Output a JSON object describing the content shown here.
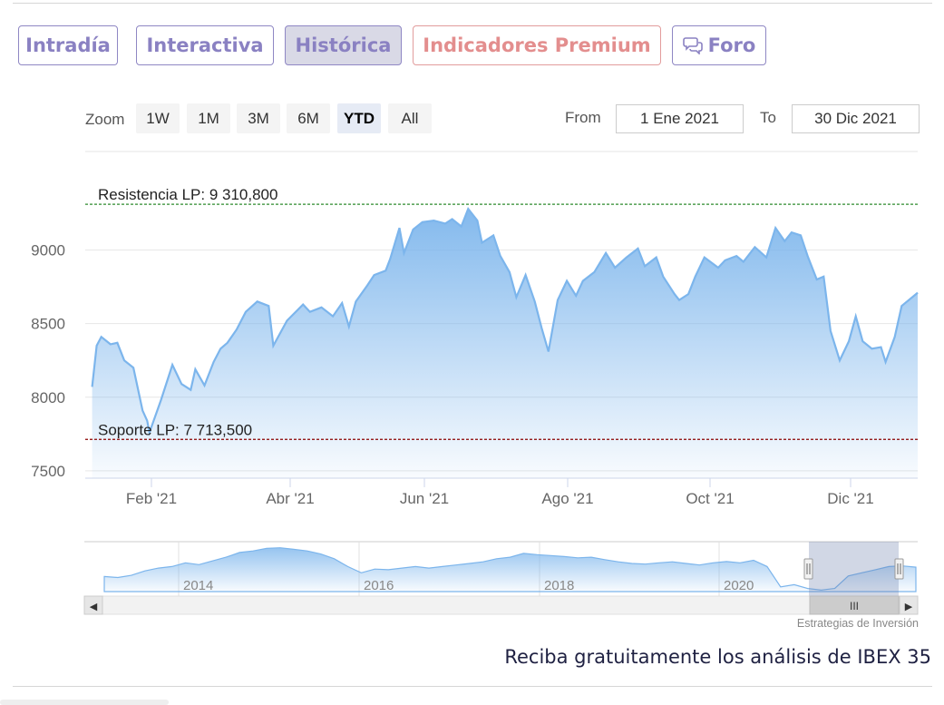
{
  "tabs": [
    {
      "label": "Intradía",
      "state": "normal"
    },
    {
      "label": "Interactiva",
      "state": "normal"
    },
    {
      "label": "Histórica",
      "state": "active"
    },
    {
      "label": "Indicadores Premium",
      "state": "premium"
    },
    {
      "label": "Foro",
      "state": "normal",
      "icon": "speech-bubbles-icon"
    }
  ],
  "range_selector": {
    "zoom_label": "Zoom",
    "buttons": [
      "1W",
      "1M",
      "3M",
      "6M",
      "YTD",
      "All"
    ],
    "selected": "YTD",
    "from_label": "From",
    "from_value": "1 Ene 2021",
    "to_label": "To",
    "to_value": "30 Dic 2021"
  },
  "colors": {
    "tab_border": "#8f87c4",
    "tab_text": "#8a81c2",
    "premium": "#e38e8e",
    "series_line": "#7cb5ec",
    "resistance_line": "#2e8b2e",
    "support_line": "#8b0000"
  },
  "chart_data": {
    "type": "area",
    "title": "",
    "xlabel": "",
    "ylabel": "",
    "ylim": [
      7450,
      9620
    ],
    "x_range": [
      "2021-01-01",
      "2021-12-30"
    ],
    "y_ticks": [
      "9000",
      "8500",
      "8000",
      "7500"
    ],
    "x_ticks": [
      "Feb '21",
      "Abr '21",
      "Jun '21",
      "Ago '21",
      "Oct '21",
      "Dic '21"
    ],
    "plot_lines": [
      {
        "label": "Resistencia LP: 9 310,800",
        "value": 9310.8,
        "style": "dashed"
      },
      {
        "label": "Soporte LP: 7 713,500",
        "value": 7713.5,
        "style": "dashed"
      }
    ],
    "grid": true,
    "series": [
      {
        "points": [
          [
            "2021-01-04",
            8070
          ],
          [
            "2021-01-06",
            8350
          ],
          [
            "2021-01-08",
            8410
          ],
          [
            "2021-01-12",
            8360
          ],
          [
            "2021-01-15",
            8370
          ],
          [
            "2021-01-18",
            8250
          ],
          [
            "2021-01-22",
            8200
          ],
          [
            "2021-01-26",
            7910
          ],
          [
            "2021-01-28",
            7840
          ],
          [
            "2021-01-29",
            7760
          ],
          [
            "2021-02-03",
            7980
          ],
          [
            "2021-02-08",
            8220
          ],
          [
            "2021-02-12",
            8090
          ],
          [
            "2021-02-16",
            8050
          ],
          [
            "2021-02-18",
            8190
          ],
          [
            "2021-02-22",
            8080
          ],
          [
            "2021-02-26",
            8240
          ],
          [
            "2021-03-01",
            8330
          ],
          [
            "2021-03-04",
            8370
          ],
          [
            "2021-03-08",
            8460
          ],
          [
            "2021-03-12",
            8580
          ],
          [
            "2021-03-17",
            8650
          ],
          [
            "2021-03-22",
            8620
          ],
          [
            "2021-03-24",
            8350
          ],
          [
            "2021-03-30",
            8520
          ],
          [
            "2021-04-06",
            8630
          ],
          [
            "2021-04-09",
            8580
          ],
          [
            "2021-04-14",
            8610
          ],
          [
            "2021-04-19",
            8550
          ],
          [
            "2021-04-23",
            8640
          ],
          [
            "2021-04-26",
            8480
          ],
          [
            "2021-04-29",
            8650
          ],
          [
            "2021-05-04",
            8760
          ],
          [
            "2021-05-07",
            8830
          ],
          [
            "2021-05-12",
            8860
          ],
          [
            "2021-05-14",
            8940
          ],
          [
            "2021-05-18",
            9150
          ],
          [
            "2021-05-20",
            8980
          ],
          [
            "2021-05-24",
            9140
          ],
          [
            "2021-05-28",
            9190
          ],
          [
            "2021-06-02",
            9200
          ],
          [
            "2021-06-07",
            9180
          ],
          [
            "2021-06-10",
            9210
          ],
          [
            "2021-06-14",
            9160
          ],
          [
            "2021-06-17",
            9280
          ],
          [
            "2021-06-21",
            9200
          ],
          [
            "2021-06-23",
            9050
          ],
          [
            "2021-06-28",
            9100
          ],
          [
            "2021-07-01",
            8960
          ],
          [
            "2021-07-05",
            8850
          ],
          [
            "2021-07-08",
            8680
          ],
          [
            "2021-07-12",
            8830
          ],
          [
            "2021-07-16",
            8650
          ],
          [
            "2021-07-19",
            8470
          ],
          [
            "2021-07-22",
            8310
          ],
          [
            "2021-07-26",
            8660
          ],
          [
            "2021-07-30",
            8790
          ],
          [
            "2021-08-03",
            8690
          ],
          [
            "2021-08-06",
            8790
          ],
          [
            "2021-08-11",
            8850
          ],
          [
            "2021-08-16",
            8980
          ],
          [
            "2021-08-20",
            8880
          ],
          [
            "2021-08-25",
            8950
          ],
          [
            "2021-08-30",
            9010
          ],
          [
            "2021-09-02",
            8890
          ],
          [
            "2021-09-07",
            8950
          ],
          [
            "2021-09-10",
            8820
          ],
          [
            "2021-09-15",
            8700
          ],
          [
            "2021-09-17",
            8660
          ],
          [
            "2021-09-21",
            8700
          ],
          [
            "2021-09-24",
            8820
          ],
          [
            "2021-09-28",
            8950
          ],
          [
            "2021-10-04",
            8880
          ],
          [
            "2021-10-07",
            8930
          ],
          [
            "2021-10-12",
            8960
          ],
          [
            "2021-10-15",
            8920
          ],
          [
            "2021-10-20",
            9020
          ],
          [
            "2021-10-25",
            8950
          ],
          [
            "2021-10-29",
            9150
          ],
          [
            "2021-11-02",
            9060
          ],
          [
            "2021-11-05",
            9120
          ],
          [
            "2021-11-09",
            9100
          ],
          [
            "2021-11-12",
            8960
          ],
          [
            "2021-11-16",
            8800
          ],
          [
            "2021-11-19",
            8820
          ],
          [
            "2021-11-22",
            8450
          ],
          [
            "2021-11-26",
            8250
          ],
          [
            "2021-11-30",
            8380
          ],
          [
            "2021-12-03",
            8550
          ],
          [
            "2021-12-06",
            8380
          ],
          [
            "2021-12-10",
            8330
          ],
          [
            "2021-12-14",
            8340
          ],
          [
            "2021-12-16",
            8240
          ],
          [
            "2021-12-20",
            8410
          ],
          [
            "2021-12-23",
            8620
          ],
          [
            "2021-12-30",
            8710
          ]
        ]
      }
    ]
  },
  "navigator": {
    "year_labels": [
      "2014",
      "2016",
      "2018",
      "2020"
    ],
    "scrollbar_grip": "III",
    "left_arrow": "◀",
    "right_arrow": "▶",
    "series": [
      8380,
      8350,
      8420,
      8560,
      8650,
      8700,
      8820,
      8760,
      8880,
      9000,
      9150,
      9200,
      9280,
      9300,
      9250,
      9200,
      9100,
      8950,
      8700,
      8500,
      8620,
      8600,
      8650,
      8700,
      8650,
      8700,
      8750,
      8800,
      8850,
      8950,
      9000,
      9120,
      9080,
      9050,
      9020,
      8980,
      9000,
      8920,
      8850,
      8800,
      8780,
      8820,
      8850,
      8800,
      8750,
      8820,
      8860,
      8820,
      8900,
      8700,
      8050,
      8120,
      8000,
      7950,
      8000,
      8400,
      8500,
      8600,
      8700,
      8720,
      8680
    ]
  },
  "credit": "Estrategias de Inversión",
  "cta": "Reciba gratuitamente los análisis de IBEX 35"
}
